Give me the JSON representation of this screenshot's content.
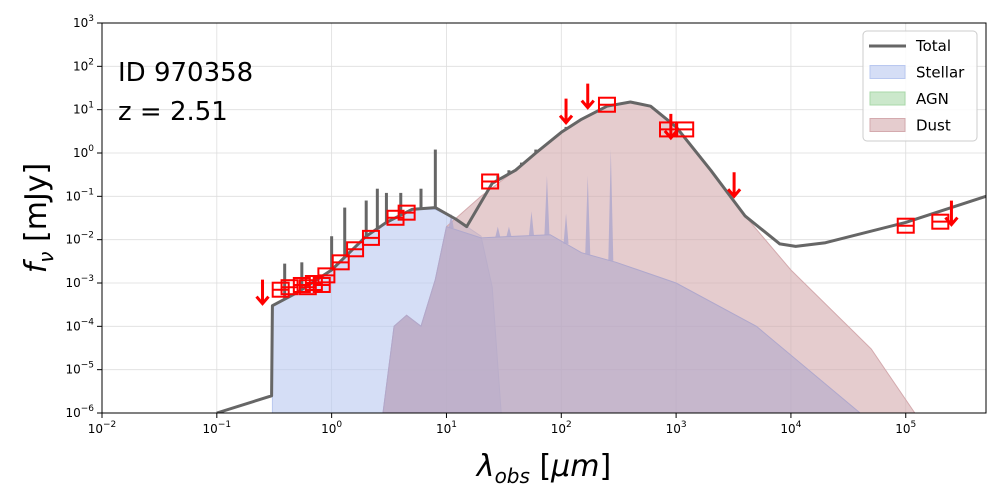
{
  "chart_data": {
    "type": "area",
    "x_scale": "log",
    "y_scale": "log",
    "xlim": [
      0.01,
      500000
    ],
    "ylim": [
      1e-06,
      1000
    ],
    "grid": true,
    "legend_position": "top-right",
    "xlabel": "λobs [μm]",
    "ylabel": "fν [mJy]",
    "annotations": [
      "ID 970358",
      "z = 2.51"
    ],
    "x_ticks": [
      {
        "base": "10",
        "exp": "−2",
        "value": 0.01
      },
      {
        "base": "10",
        "exp": "−1",
        "value": 0.1
      },
      {
        "base": "10",
        "exp": "0",
        "value": 1
      },
      {
        "base": "10",
        "exp": "1",
        "value": 10
      },
      {
        "base": "10",
        "exp": "2",
        "value": 100
      },
      {
        "base": "10",
        "exp": "3",
        "value": 1000
      },
      {
        "base": "10",
        "exp": "4",
        "value": 10000
      },
      {
        "base": "10",
        "exp": "5",
        "value": 100000
      }
    ],
    "y_ticks": [
      {
        "base": "10",
        "exp": "−6",
        "value": 1e-06
      },
      {
        "base": "10",
        "exp": "−5",
        "value": 1e-05
      },
      {
        "base": "10",
        "exp": "−4",
        "value": 0.0001
      },
      {
        "base": "10",
        "exp": "−3",
        "value": 0.001
      },
      {
        "base": "10",
        "exp": "−2",
        "value": 0.01
      },
      {
        "base": "10",
        "exp": "−1",
        "value": 0.1
      },
      {
        "base": "10",
        "exp": "0",
        "value": 1
      },
      {
        "base": "10",
        "exp": "1",
        "value": 10
      },
      {
        "base": "10",
        "exp": "2",
        "value": 100
      },
      {
        "base": "10",
        "exp": "3",
        "value": 1000
      }
    ],
    "series": [
      {
        "name": "Total",
        "kind": "line",
        "color": "#666666",
        "points": [
          [
            0.1,
            1e-06
          ],
          [
            0.3,
            2.5e-06
          ],
          [
            0.305,
            0.0003
          ],
          [
            0.5,
            0.0006
          ],
          [
            1,
            0.002
          ],
          [
            2,
            0.012
          ],
          [
            3,
            0.025
          ],
          [
            5,
            0.05
          ],
          [
            8,
            0.055
          ],
          [
            12,
            0.03
          ],
          [
            15,
            0.02
          ],
          [
            25,
            0.2
          ],
          [
            40,
            0.4
          ],
          [
            60,
            1
          ],
          [
            100,
            3
          ],
          [
            150,
            6
          ],
          [
            250,
            12
          ],
          [
            400,
            15
          ],
          [
            600,
            12
          ],
          [
            1000,
            4
          ],
          [
            2000,
            0.4
          ],
          [
            4000,
            0.035
          ],
          [
            8000,
            0.008
          ],
          [
            11000,
            0.007
          ],
          [
            20000,
            0.0085
          ],
          [
            100000,
            0.025
          ],
          [
            500000,
            0.1
          ]
        ],
        "spikes": [
          [
            0.39,
            0.0028
          ],
          [
            0.55,
            0.003
          ],
          [
            1,
            0.012
          ],
          [
            1.3,
            0.055
          ],
          [
            2,
            0.08
          ],
          [
            2.5,
            0.15
          ],
          [
            3,
            0.12
          ],
          [
            4,
            0.12
          ],
          [
            6,
            0.15
          ],
          [
            8,
            1.2
          ],
          [
            28,
            0.3
          ],
          [
            35,
            0.4
          ],
          [
            45,
            0.6
          ],
          [
            60,
            1.2
          ],
          [
            110,
            4
          ]
        ]
      },
      {
        "name": "Stellar",
        "kind": "area",
        "color": "#b9c8f0",
        "points": [
          [
            0.305,
            1e-06
          ],
          [
            0.305,
            0.0003
          ],
          [
            0.5,
            0.0006
          ],
          [
            1,
            0.002
          ],
          [
            2,
            0.012
          ],
          [
            3,
            0.025
          ],
          [
            5,
            0.05
          ],
          [
            8,
            0.05
          ],
          [
            12,
            0.03
          ],
          [
            20,
            0.012
          ],
          [
            25,
            0.0008
          ],
          [
            30,
            1e-06
          ]
        ]
      },
      {
        "name": "AGN",
        "kind": "area",
        "color": "#a8d8a8",
        "points": []
      },
      {
        "name": "Dust",
        "kind": "area",
        "color": "#d4aaae",
        "points": [
          [
            2.8,
            1e-06
          ],
          [
            3.5,
            0.0001
          ],
          [
            4.5,
            0.00018
          ],
          [
            6,
            0.0001
          ],
          [
            8,
            0.0012
          ],
          [
            10,
            0.02
          ],
          [
            20,
            0.1
          ],
          [
            40,
            0.4
          ],
          [
            60,
            1
          ],
          [
            100,
            3
          ],
          [
            150,
            6
          ],
          [
            250,
            12
          ],
          [
            400,
            15
          ],
          [
            600,
            12
          ],
          [
            1000,
            4
          ],
          [
            2000,
            0.4
          ],
          [
            4000,
            0.035
          ],
          [
            10000,
            0.002
          ],
          [
            50000,
            3e-05
          ],
          [
            120000,
            1e-06
          ]
        ]
      },
      {
        "name": "",
        "kind": "area",
        "color": "#b0a8cc",
        "points": [
          [
            2.8,
            1e-06
          ],
          [
            3.5,
            0.0001
          ],
          [
            4.5,
            0.00018
          ],
          [
            6,
            0.0001
          ],
          [
            8,
            0.0012
          ],
          [
            10,
            0.02
          ],
          [
            20,
            0.011
          ],
          [
            40,
            0.012
          ],
          [
            80,
            0.013
          ],
          [
            150,
            0.005
          ],
          [
            300,
            0.003
          ],
          [
            1000,
            0.001
          ],
          [
            5000,
            0.0001
          ],
          [
            40000,
            1e-06
          ]
        ],
        "spikes": [
          [
            11,
            0.04
          ],
          [
            28,
            0.02
          ],
          [
            35,
            0.02
          ],
          [
            55,
            0.045
          ],
          [
            75,
            0.3
          ],
          [
            110,
            0.04
          ],
          [
            170,
            0.3
          ],
          [
            270,
            1.2
          ]
        ]
      }
    ],
    "photometry": [
      [
        0.36,
        0.0007
      ],
      [
        0.43,
        0.0008
      ],
      [
        0.55,
        0.0009
      ],
      [
        0.62,
        0.0008
      ],
      [
        0.7,
        0.001
      ],
      [
        0.82,
        0.0009
      ],
      [
        0.9,
        0.0015
      ],
      [
        1.2,
        0.003
      ],
      [
        1.6,
        0.006
      ],
      [
        2.2,
        0.011
      ],
      [
        3.6,
        0.032
      ],
      [
        4.5,
        0.042
      ],
      [
        24,
        0.22
      ],
      [
        250,
        13
      ],
      [
        850,
        3.5
      ],
      [
        1200,
        3.5
      ],
      [
        100000,
        0.021
      ],
      [
        200000,
        0.026
      ]
    ],
    "upper_limits": [
      [
        0.25,
        0.0006
      ],
      [
        110,
        9
      ],
      [
        170,
        20
      ],
      [
        900,
        4
      ],
      [
        3200,
        0.18
      ],
      [
        250000,
        0.04
      ]
    ]
  }
}
